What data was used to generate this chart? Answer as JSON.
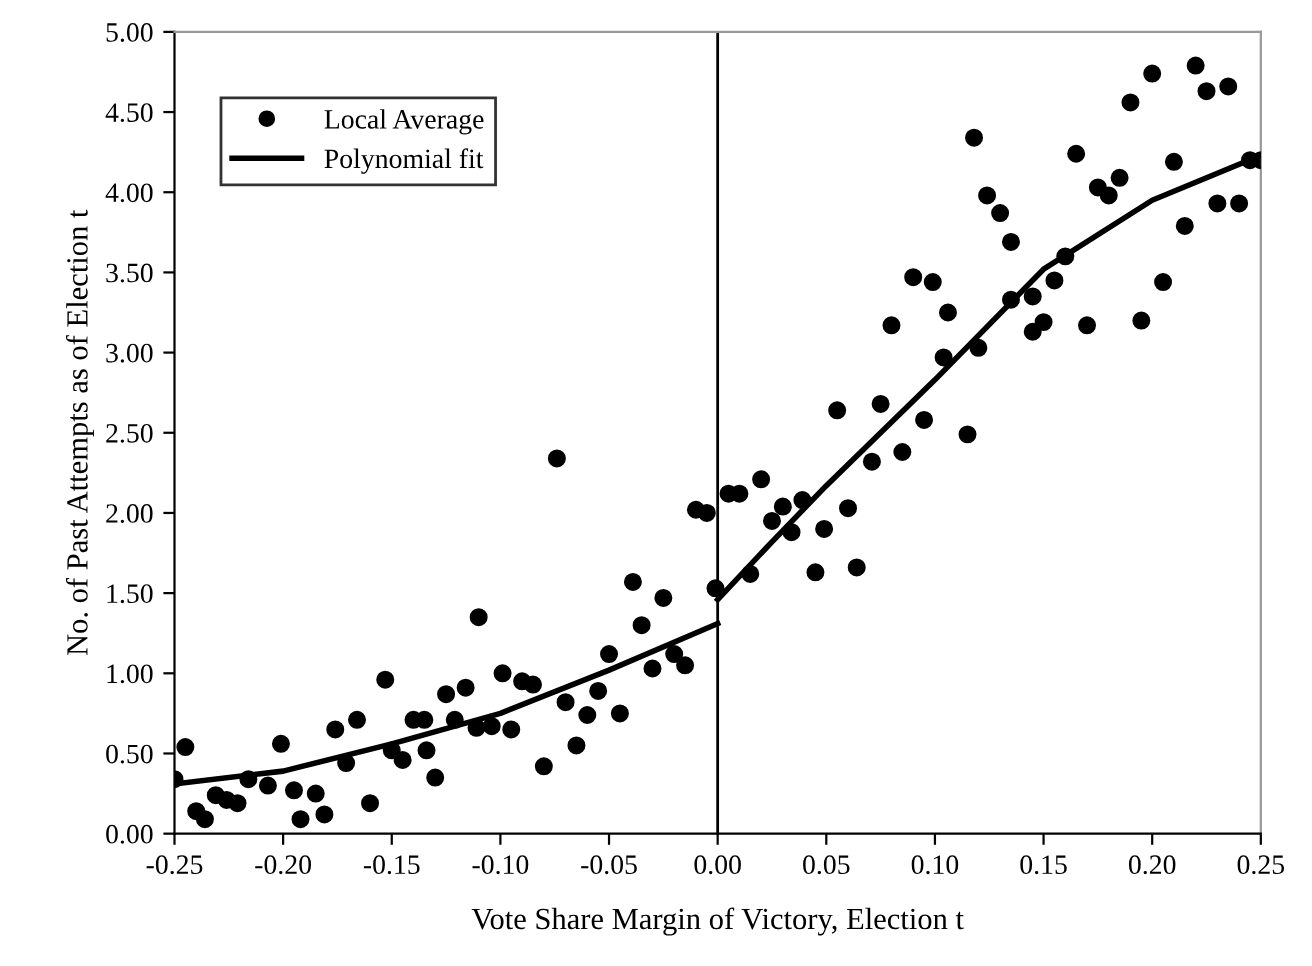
{
  "chart_data": {
    "type": "scatter",
    "xlabel": "Vote Share Margin of Victory, Election t",
    "ylabel": "No. of Past Attempts as of Election t",
    "xlim": [
      -0.25,
      0.25
    ],
    "ylim": [
      0,
      5
    ],
    "xticks": [
      {
        "value": -0.25,
        "label": "-0.25"
      },
      {
        "value": -0.2,
        "label": "-0.20"
      },
      {
        "value": -0.15,
        "label": "-0.15"
      },
      {
        "value": -0.1,
        "label": "-0.10"
      },
      {
        "value": -0.05,
        "label": "-0.05"
      },
      {
        "value": 0,
        "label": "0.00"
      },
      {
        "value": 0.05,
        "label": "0.05"
      },
      {
        "value": 0.1,
        "label": "0.10"
      },
      {
        "value": 0.15,
        "label": "0.15"
      },
      {
        "value": 0.2,
        "label": "0.20"
      },
      {
        "value": 0.25,
        "label": "0.25"
      }
    ],
    "yticks": [
      {
        "value": 0,
        "label": "0.00"
      },
      {
        "value": 0.5,
        "label": "0.50"
      },
      {
        "value": 1,
        "label": "1.00"
      },
      {
        "value": 1.5,
        "label": "1.50"
      },
      {
        "value": 2,
        "label": "2.00"
      },
      {
        "value": 2.5,
        "label": "2.50"
      },
      {
        "value": 3,
        "label": "3.00"
      },
      {
        "value": 3.5,
        "label": "3.50"
      },
      {
        "value": 4,
        "label": "4.00"
      },
      {
        "value": 4.5,
        "label": "4.50"
      },
      {
        "value": 5,
        "label": "5.00"
      }
    ],
    "grid": false,
    "legend": "top left",
    "ref_lines": [
      {
        "axis": "x",
        "value": 0,
        "color": "#000000"
      }
    ],
    "series": [
      {
        "name": "Local Average",
        "marker": "circle",
        "color": "#000000",
        "x": [
          -0.25,
          -0.245,
          -0.24,
          -0.236,
          -0.231,
          -0.226,
          -0.221,
          -0.216,
          -0.207,
          -0.201,
          -0.195,
          -0.192,
          -0.185,
          -0.181,
          -0.176,
          -0.171,
          -0.166,
          -0.16,
          -0.153,
          -0.15,
          -0.145,
          -0.14,
          -0.135,
          -0.134,
          -0.13,
          -0.125,
          -0.121,
          -0.116,
          -0.111,
          -0.11,
          -0.104,
          -0.099,
          -0.095,
          -0.09,
          -0.085,
          -0.08,
          -0.074,
          -0.07,
          -0.065,
          -0.06,
          -0.055,
          -0.05,
          -0.045,
          -0.039,
          -0.035,
          -0.03,
          -0.025,
          -0.02,
          -0.015,
          -0.01,
          -0.005,
          -0.001,
          0.005,
          0.01,
          0.015,
          0.02,
          0.025,
          0.03,
          0.034,
          0.039,
          0.045,
          0.049,
          0.055,
          0.06,
          0.064,
          0.071,
          0.075,
          0.08,
          0.085,
          0.09,
          0.095,
          0.099,
          0.104,
          0.106,
          0.115,
          0.118,
          0.12,
          0.124,
          0.13,
          0.135,
          0.135,
          0.145,
          0.145,
          0.15,
          0.155,
          0.16,
          0.165,
          0.17,
          0.175,
          0.18,
          0.185,
          0.19,
          0.195,
          0.2,
          0.205,
          0.21,
          0.215,
          0.22,
          0.225,
          0.23,
          0.235,
          0.24,
          0.245,
          0.25
        ],
        "values": [
          0.34,
          0.54,
          0.14,
          0.09,
          0.24,
          0.21,
          0.19,
          0.34,
          0.3,
          0.56,
          0.27,
          0.09,
          0.25,
          0.12,
          0.65,
          0.44,
          0.71,
          0.19,
          0.96,
          0.52,
          0.46,
          0.71,
          0.71,
          0.52,
          0.35,
          0.87,
          0.71,
          0.91,
          0.66,
          1.35,
          0.67,
          1.0,
          0.65,
          0.95,
          0.93,
          0.42,
          2.34,
          0.82,
          0.55,
          0.74,
          0.89,
          1.12,
          0.75,
          1.57,
          1.3,
          1.03,
          1.47,
          1.12,
          1.05,
          2.02,
          2.0,
          1.53,
          2.12,
          2.12,
          1.62,
          2.21,
          1.95,
          2.04,
          1.88,
          2.08,
          1.63,
          1.9,
          2.64,
          2.03,
          1.66,
          2.32,
          2.68,
          3.17,
          2.38,
          3.47,
          2.58,
          3.44,
          2.97,
          3.25,
          2.49,
          4.34,
          3.03,
          3.98,
          3.87,
          3.33,
          3.69,
          3.13,
          3.35,
          3.19,
          3.45,
          3.6,
          4.24,
          3.17,
          4.03,
          3.98,
          4.09,
          4.56,
          3.2,
          4.74,
          3.44,
          4.19,
          3.79,
          4.79,
          4.63,
          3.93,
          4.66,
          3.93,
          4.2,
          4.2
        ]
      },
      {
        "name": "Polynomial fit",
        "type": "line",
        "marker": "none",
        "line_style": "solid",
        "color": "#000000",
        "x": [
          -0.25,
          -0.2,
          -0.15,
          -0.1,
          -0.05,
          0
        ],
        "values": [
          0.31,
          0.39,
          0.56,
          0.75,
          1.02,
          1.31
        ]
      },
      {
        "type": "line",
        "marker": "none",
        "line_style": "solid",
        "color": "#000000",
        "x": [
          0,
          0.025,
          0.05,
          0.1,
          0.15,
          0.2,
          0.25
        ],
        "values": [
          1.46,
          1.82,
          2.17,
          2.83,
          3.52,
          3.95,
          4.23
        ]
      }
    ]
  }
}
